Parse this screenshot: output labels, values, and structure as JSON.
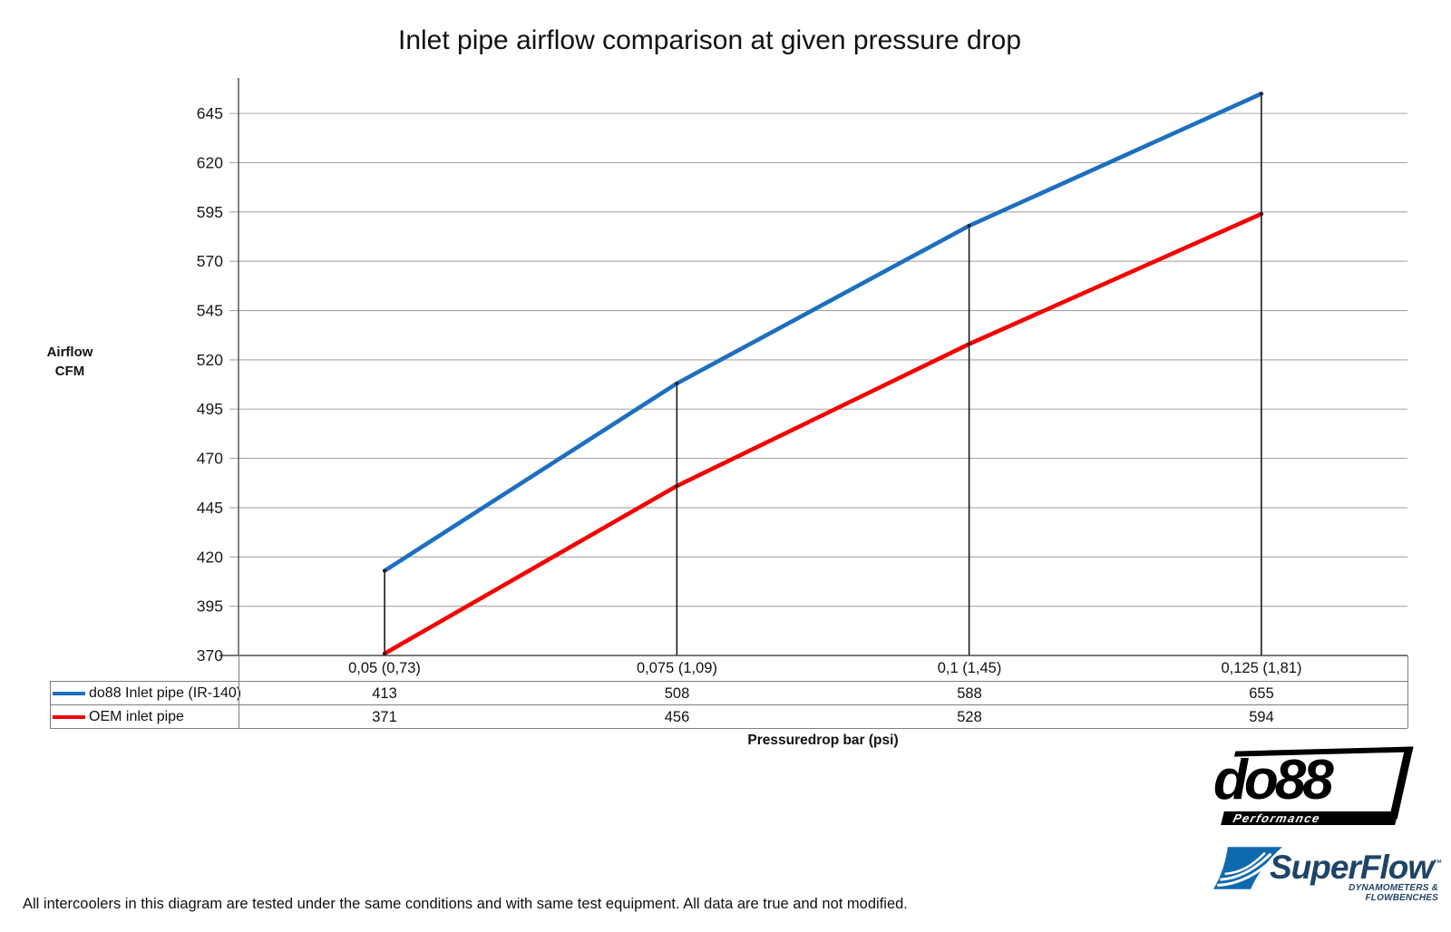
{
  "title": "Inlet pipe airflow comparison at given pressure drop",
  "chart_data": {
    "type": "line",
    "title": "Inlet pipe airflow comparison at given pressure drop",
    "xlabel": "Pressuredrop bar (psi)",
    "ylabel": "Airflow CFM",
    "ylabel_lines": {
      "line1": "Airflow",
      "line2": "CFM"
    },
    "categories": [
      "0,05 (0,73)",
      "0,075 (1,09)",
      "0,1 (1,45)",
      "0,125 (1,81)"
    ],
    "series": [
      {
        "name": "do88 Inlet pipe (IR-140)",
        "color": "#1d6fc0",
        "values": [
          413,
          508,
          588,
          655
        ]
      },
      {
        "name": "OEM inlet pipe",
        "color": "#f40000",
        "values": [
          371,
          456,
          528,
          594
        ]
      }
    ],
    "yticks": [
      370,
      395,
      420,
      445,
      470,
      495,
      520,
      545,
      570,
      595,
      620,
      645
    ],
    "ylim": [
      370,
      663
    ],
    "grid": true,
    "drop_lines": true,
    "legend_position": "table-left"
  },
  "footer_note": "All intercoolers in this diagram are tested under the same conditions and with same test equipment. All data are true and not modified.",
  "logos": {
    "do88": {
      "name": "do88",
      "tagline": "Performance"
    },
    "superflow": {
      "name": "SuperFlow",
      "trademark": "™",
      "tagline": "DYNAMOMETERS & FLOWBENCHES"
    }
  },
  "colors": {
    "grid": "#a6a6a6",
    "axis": "#4d4d4d",
    "drop_line": "#1a1a1a",
    "tick_text": "#1a1a1a",
    "table_border": "#7f7f7f",
    "superflow_blue": "#0f69af",
    "superflow_navy": "#1e4468"
  }
}
